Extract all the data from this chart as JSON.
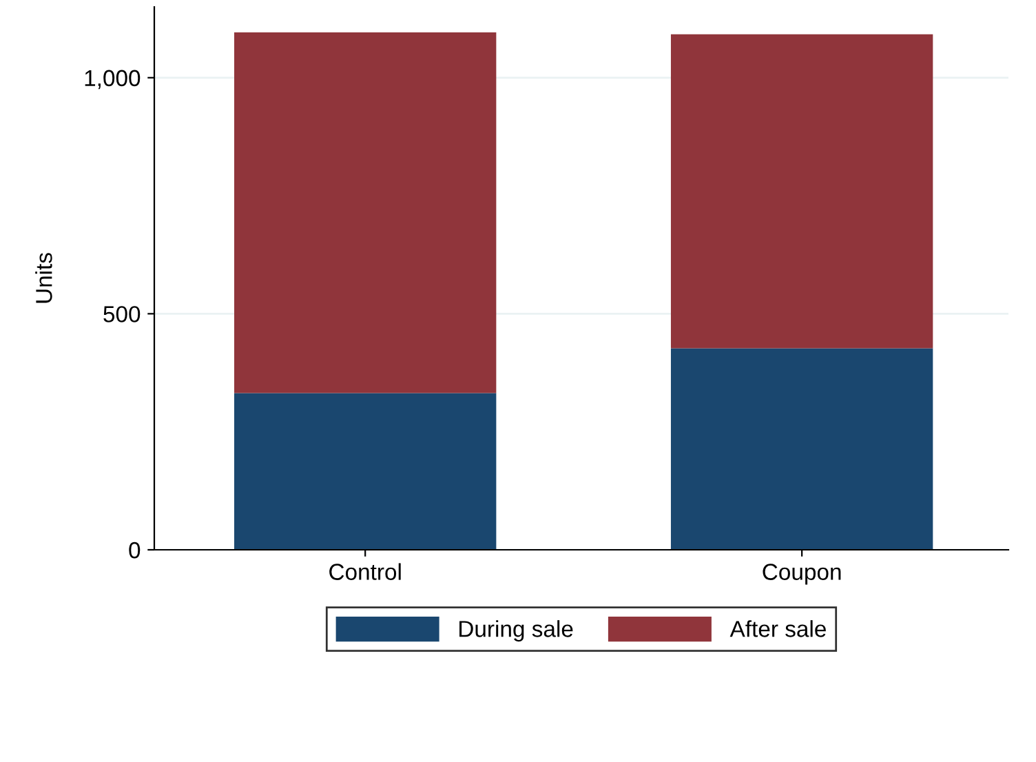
{
  "chart_data": {
    "type": "bar",
    "stacked": true,
    "ylabel": "Units",
    "categories": [
      "Control",
      "Coupon"
    ],
    "series": [
      {
        "name": "During sale",
        "color": "#1a476f",
        "values": [
          332,
          427
        ]
      },
      {
        "name": "After sale",
        "color": "#90353b",
        "values": [
          764,
          665
        ]
      }
    ],
    "ylim": [
      0,
      1150
    ],
    "yticks": [
      {
        "value": 0,
        "label": "0"
      },
      {
        "value": 500,
        "label": "500"
      },
      {
        "value": 1000,
        "label": "1,000"
      }
    ],
    "grid": "y",
    "legend": "bottom"
  }
}
